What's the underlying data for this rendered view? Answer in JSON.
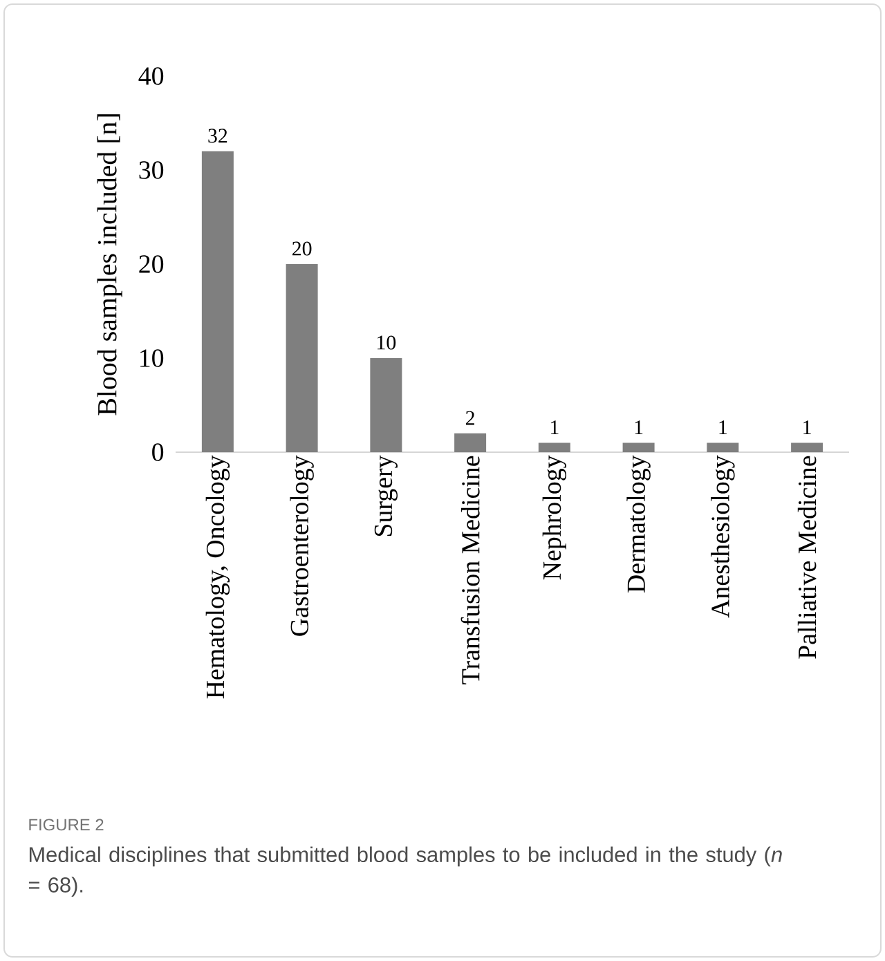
{
  "chart_data": {
    "type": "bar",
    "ylabel": "Blood samples included [n]",
    "categories": [
      "Hematology, Oncology",
      "Gastroenterology",
      "Surgery",
      "Transfusion Medicine",
      "Nephrology",
      "Dermatology",
      "Anesthesiology",
      "Palliative Medicine"
    ],
    "values": [
      32,
      20,
      10,
      2,
      1,
      1,
      1,
      1
    ],
    "color": "#7f7f7f",
    "ylim": [
      0,
      40
    ],
    "yticks": [
      0,
      10,
      20,
      30,
      40
    ],
    "data_labels": true,
    "grid": false,
    "annotations": [
      "FIGURE 2",
      "Medical disciplines that submitted blood samples to be included in the study (*n* = 68)."
    ]
  }
}
